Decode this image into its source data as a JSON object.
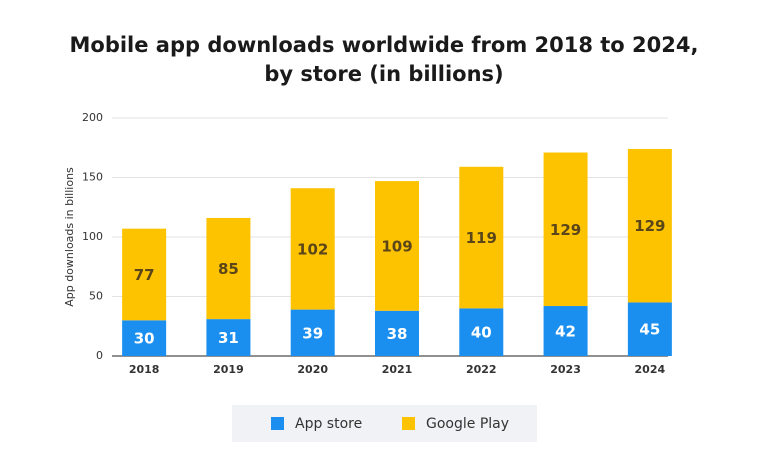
{
  "chart_data": {
    "type": "stacked-bar",
    "title": [
      "Mobile app downloads worldwide from 2018 to 2024,",
      "by store (in billions)"
    ],
    "y_label": "App downloads in billions",
    "categories": [
      "2018",
      "2019",
      "2020",
      "2021",
      "2022",
      "2023",
      "2024"
    ],
    "series": [
      {
        "name": "App store",
        "color": "#1a8ff0",
        "label_color": "#ffffff",
        "values": [
          30,
          31,
          39,
          38,
          40,
          42,
          45
        ]
      },
      {
        "name": "Google Play",
        "color": "#fdc300",
        "label_color": "#5a4618",
        "values": [
          77,
          85,
          102,
          109,
          119,
          129,
          129
        ]
      }
    ],
    "ylim": [
      0,
      200
    ],
    "yticks": [
      0,
      50,
      100,
      150,
      200
    ],
    "grid": true,
    "legend": "bottom"
  }
}
